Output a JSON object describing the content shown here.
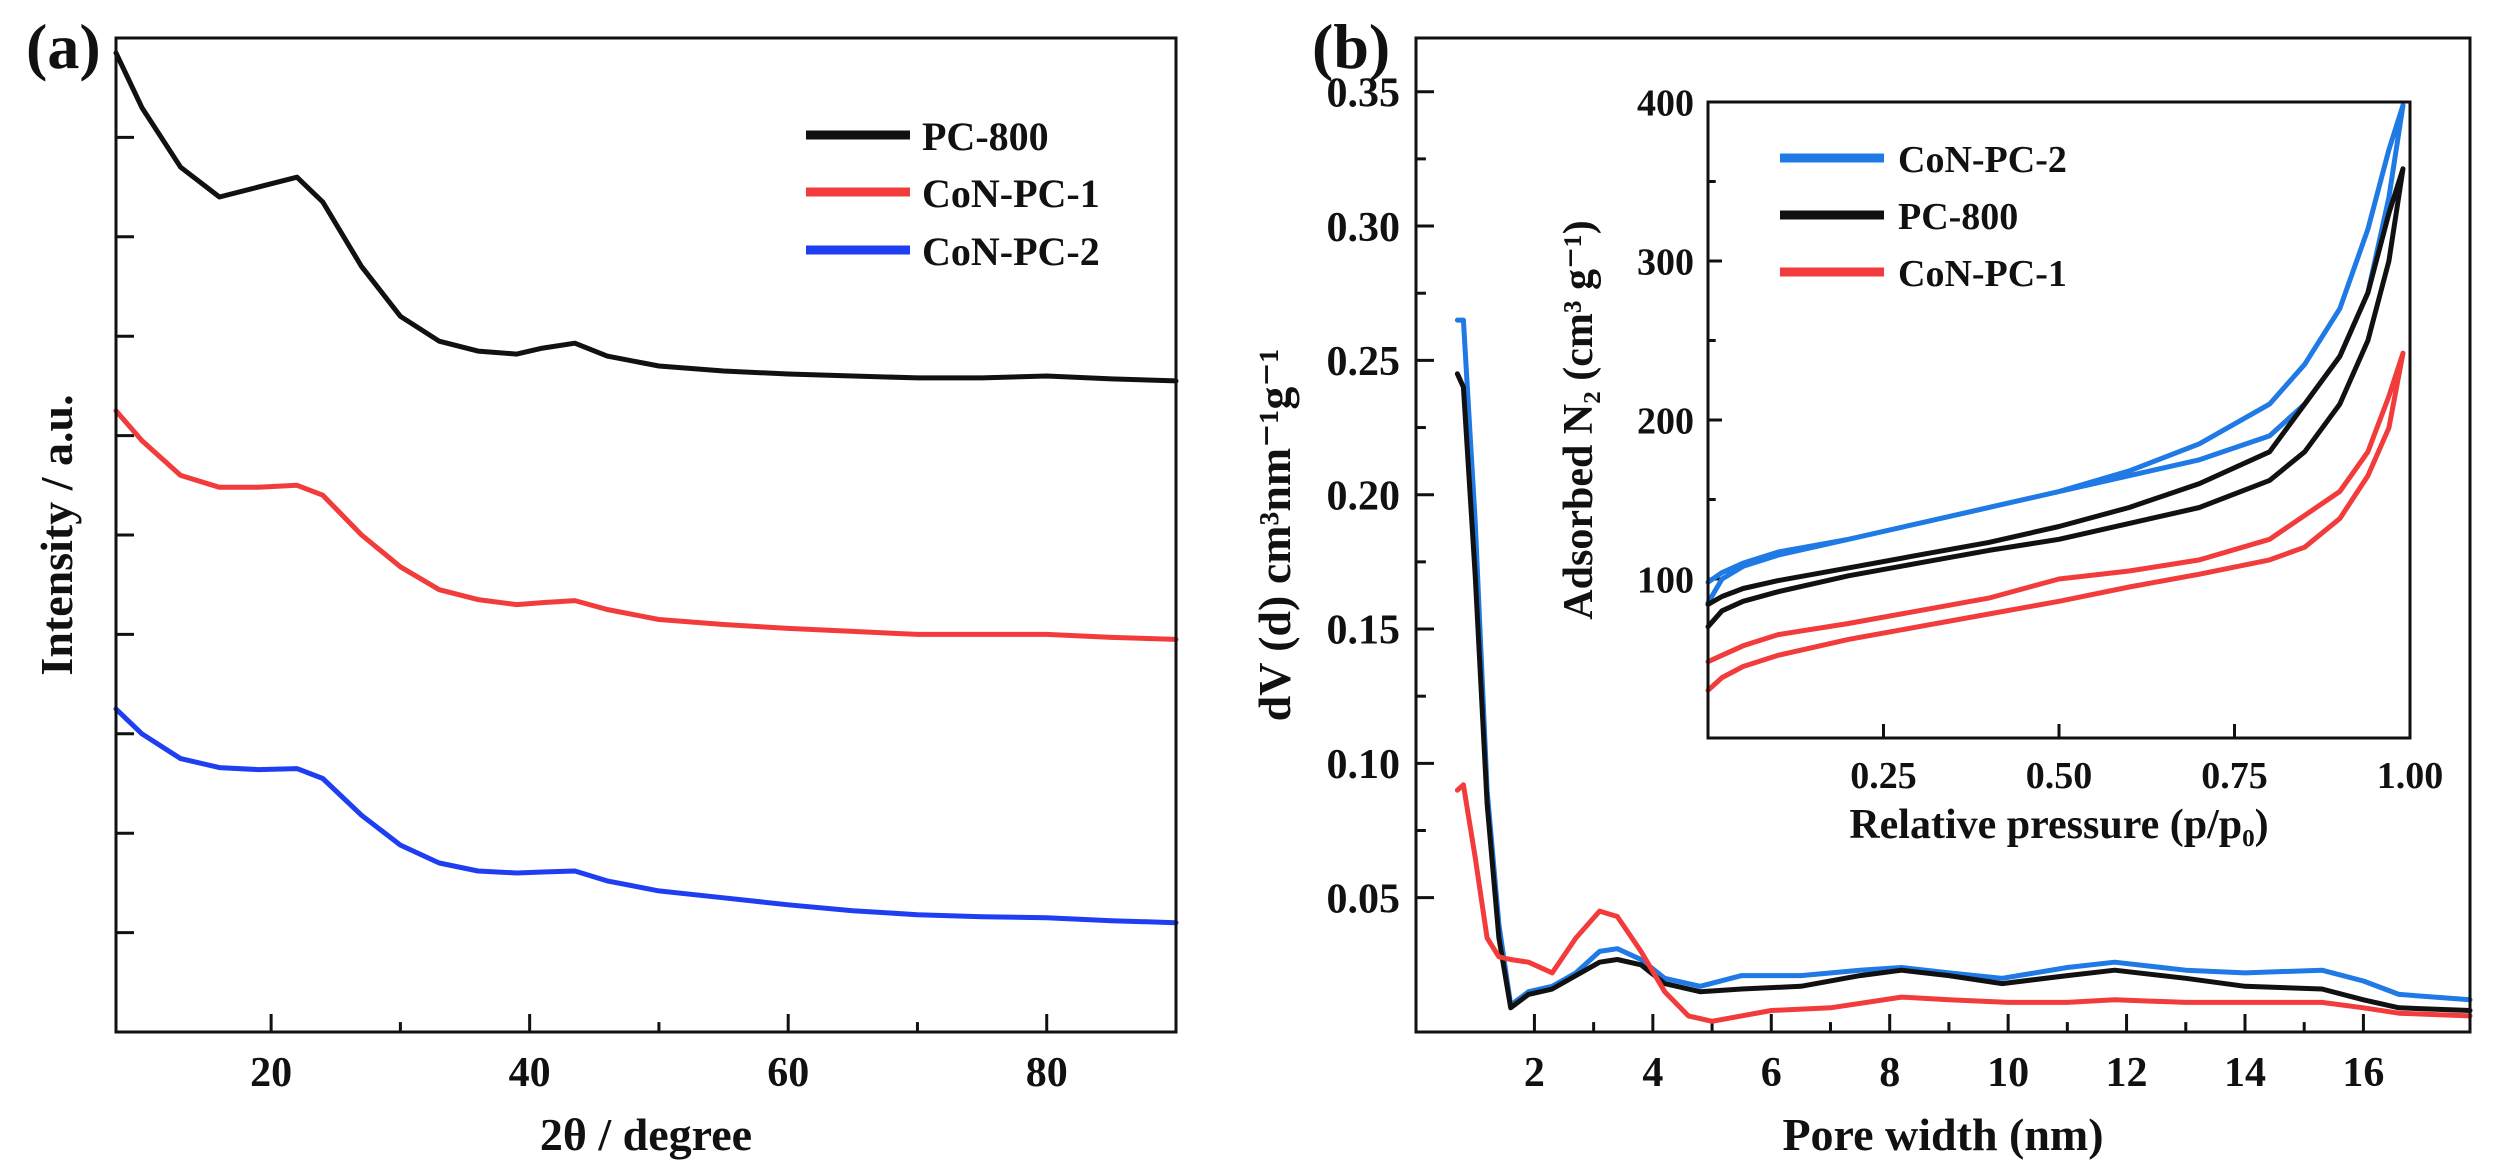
{
  "colors": {
    "black": "#111111",
    "red": "#f23c3c",
    "blue": "#1f3ef2",
    "lightblue": "#1f7ae6",
    "axis": "#111111"
  },
  "chart_data": [
    {
      "panel_label": "(a)",
      "type": "line",
      "xlabel": "2θ / degree",
      "ylabel": "Intensity / a.u.",
      "xlim": [
        8,
        90
      ],
      "ylim": [
        0,
        1
      ],
      "xticks": [
        20,
        40,
        60,
        80
      ],
      "y_tick_labels_shown": false,
      "legend": {
        "position": "top-right",
        "entries": [
          "PC-800",
          "CoN-PC-1",
          "CoN-PC-2"
        ]
      },
      "series": [
        {
          "name": "PC-800",
          "color": "black",
          "x": [
            8,
            10,
            13,
            16,
            19,
            22,
            24,
            27,
            30,
            33,
            36,
            39,
            41,
            43.5,
            46,
            50,
            55,
            60,
            65,
            70,
            75,
            80,
            85,
            90
          ],
          "y": [
            0.985,
            0.93,
            0.87,
            0.84,
            0.85,
            0.86,
            0.835,
            0.77,
            0.72,
            0.695,
            0.685,
            0.682,
            0.688,
            0.693,
            0.68,
            0.67,
            0.665,
            0.662,
            0.66,
            0.658,
            0.658,
            0.66,
            0.657,
            0.655
          ]
        },
        {
          "name": "CoN-PC-1",
          "color": "red",
          "x": [
            8,
            10,
            13,
            16,
            19,
            22,
            24,
            27,
            30,
            33,
            36,
            39,
            41,
            43.5,
            46,
            50,
            55,
            60,
            65,
            70,
            75,
            80,
            85,
            90
          ],
          "y": [
            0.625,
            0.595,
            0.56,
            0.548,
            0.548,
            0.55,
            0.54,
            0.5,
            0.468,
            0.445,
            0.435,
            0.43,
            0.432,
            0.434,
            0.425,
            0.415,
            0.41,
            0.406,
            0.403,
            0.4,
            0.4,
            0.4,
            0.397,
            0.395
          ]
        },
        {
          "name": "CoN-PC-2",
          "color": "blue",
          "x": [
            8,
            10,
            13,
            16,
            19,
            22,
            24,
            27,
            30,
            33,
            36,
            39,
            41,
            43.5,
            46,
            50,
            55,
            60,
            65,
            70,
            75,
            80,
            85,
            90
          ],
          "y": [
            0.325,
            0.3,
            0.275,
            0.266,
            0.264,
            0.265,
            0.255,
            0.218,
            0.188,
            0.17,
            0.162,
            0.16,
            0.161,
            0.162,
            0.152,
            0.142,
            0.135,
            0.128,
            0.122,
            0.118,
            0.116,
            0.115,
            0.112,
            0.11
          ]
        }
      ]
    },
    {
      "panel_label": "(b)",
      "type": "line",
      "xlabel": "Pore width (nm)",
      "ylabel": "dV (d) cm³nm⁻¹g⁻¹",
      "xlim": [
        0,
        17.8
      ],
      "ylim": [
        0,
        0.37
      ],
      "xticks": [
        2,
        4,
        6,
        8,
        10,
        12,
        14,
        16
      ],
      "yticks": [
        0.05,
        0.1,
        0.15,
        0.2,
        0.25,
        0.3,
        0.35
      ],
      "ytick_labels": [
        "0.05",
        "0.10",
        "0.15",
        "0.20",
        "0.25",
        "0.30",
        "0.35"
      ],
      "series": [
        {
          "name": "CoN-PC-2",
          "color": "lightblue",
          "x": [
            0.7,
            0.8,
            1.0,
            1.2,
            1.4,
            1.6,
            1.9,
            2.3,
            2.7,
            3.1,
            3.4,
            3.8,
            4.2,
            4.8,
            5.5,
            6.5,
            7.5,
            8.2,
            9.0,
            9.9,
            11.0,
            11.8,
            13.0,
            14.0,
            15.3,
            16.0,
            16.6,
            17.8
          ],
          "y": [
            0.265,
            0.265,
            0.19,
            0.09,
            0.04,
            0.01,
            0.015,
            0.017,
            0.022,
            0.03,
            0.031,
            0.027,
            0.02,
            0.017,
            0.021,
            0.021,
            0.023,
            0.024,
            0.022,
            0.02,
            0.024,
            0.026,
            0.023,
            0.022,
            0.023,
            0.019,
            0.014,
            0.012
          ]
        },
        {
          "name": "PC-800",
          "color": "black",
          "x": [
            0.7,
            0.8,
            1.0,
            1.2,
            1.4,
            1.6,
            1.9,
            2.3,
            2.7,
            3.1,
            3.4,
            3.8,
            4.2,
            4.8,
            5.5,
            6.5,
            7.5,
            8.2,
            9.0,
            9.9,
            11.0,
            11.8,
            13.0,
            14.0,
            15.3,
            16.0,
            16.6,
            17.8
          ],
          "y": [
            0.245,
            0.24,
            0.17,
            0.085,
            0.035,
            0.009,
            0.014,
            0.016,
            0.021,
            0.026,
            0.027,
            0.025,
            0.018,
            0.015,
            0.016,
            0.017,
            0.021,
            0.023,
            0.021,
            0.018,
            0.021,
            0.023,
            0.02,
            0.017,
            0.016,
            0.012,
            0.009,
            0.008
          ]
        },
        {
          "name": "CoN-PC-1",
          "color": "red",
          "x": [
            0.7,
            0.8,
            1.0,
            1.2,
            1.4,
            1.6,
            1.9,
            2.3,
            2.7,
            3.1,
            3.4,
            3.8,
            4.2,
            4.6,
            5.0,
            6.0,
            7.0,
            8.2,
            9.0,
            10.0,
            11.0,
            11.8,
            13.0,
            14.0,
            15.3,
            16.0,
            16.6,
            17.8
          ],
          "y": [
            0.09,
            0.092,
            0.065,
            0.035,
            0.028,
            0.027,
            0.026,
            0.022,
            0.035,
            0.045,
            0.043,
            0.03,
            0.015,
            0.006,
            0.004,
            0.008,
            0.009,
            0.013,
            0.012,
            0.011,
            0.011,
            0.012,
            0.011,
            0.011,
            0.011,
            0.009,
            0.007,
            0.006
          ]
        }
      ]
    },
    {
      "panel_label": "inset",
      "type": "line",
      "xlabel": "Relative pressure (p/p₀)",
      "ylabel": "Adsorbed N₂ (cm³ g⁻¹)",
      "xlim": [
        0,
        1.0
      ],
      "ylim": [
        0,
        400
      ],
      "xticks": [
        0.25,
        0.5,
        0.75,
        1.0
      ],
      "xtick_labels": [
        "0.25",
        "0.50",
        "0.75",
        "1.00"
      ],
      "yticks": [
        100,
        200,
        300,
        400
      ],
      "legend": {
        "position": "top-left",
        "entries": [
          "CoN-PC-2",
          "PC-800",
          "CoN-PC-1"
        ]
      },
      "series": [
        {
          "name": "CoN-PC-2",
          "color": "lightblue",
          "x": [
            0.0,
            0.02,
            0.05,
            0.1,
            0.2,
            0.3,
            0.4,
            0.5,
            0.6,
            0.7,
            0.8,
            0.85,
            0.9,
            0.94,
            0.97,
            0.99,
            0.97,
            0.94,
            0.9,
            0.85,
            0.8,
            0.7,
            0.6,
            0.5,
            0.4,
            0.3,
            0.2,
            0.1,
            0.05,
            0.02,
            0.0
          ],
          "y": [
            85,
            100,
            108,
            115,
            125,
            135,
            145,
            155,
            165,
            175,
            190,
            210,
            240,
            280,
            340,
            398,
            370,
            320,
            270,
            235,
            210,
            185,
            168,
            155,
            145,
            135,
            125,
            117,
            110,
            104,
            98
          ]
        },
        {
          "name": "PC-800",
          "color": "black",
          "x": [
            0.0,
            0.02,
            0.05,
            0.1,
            0.2,
            0.3,
            0.4,
            0.5,
            0.6,
            0.7,
            0.8,
            0.85,
            0.9,
            0.94,
            0.97,
            0.99,
            0.97,
            0.94,
            0.9,
            0.85,
            0.8,
            0.7,
            0.6,
            0.5,
            0.4,
            0.3,
            0.2,
            0.1,
            0.05,
            0.02,
            0.0
          ],
          "y": [
            70,
            80,
            86,
            92,
            102,
            110,
            118,
            125,
            135,
            145,
            162,
            180,
            210,
            250,
            300,
            358,
            330,
            280,
            240,
            210,
            180,
            160,
            145,
            133,
            123,
            115,
            107,
            99,
            94,
            89,
            84
          ]
        },
        {
          "name": "CoN-PC-1",
          "color": "red",
          "x": [
            0.0,
            0.02,
            0.05,
            0.1,
            0.2,
            0.3,
            0.4,
            0.5,
            0.6,
            0.7,
            0.8,
            0.85,
            0.9,
            0.94,
            0.97,
            0.99,
            0.97,
            0.94,
            0.9,
            0.85,
            0.8,
            0.7,
            0.6,
            0.5,
            0.4,
            0.3,
            0.2,
            0.1,
            0.05,
            0.02,
            0.0
          ],
          "y": [
            30,
            38,
            45,
            52,
            62,
            70,
            78,
            86,
            95,
            103,
            112,
            120,
            138,
            165,
            195,
            242,
            215,
            180,
            155,
            140,
            125,
            112,
            105,
            100,
            88,
            80,
            72,
            65,
            58,
            52,
            48
          ]
        }
      ]
    }
  ]
}
